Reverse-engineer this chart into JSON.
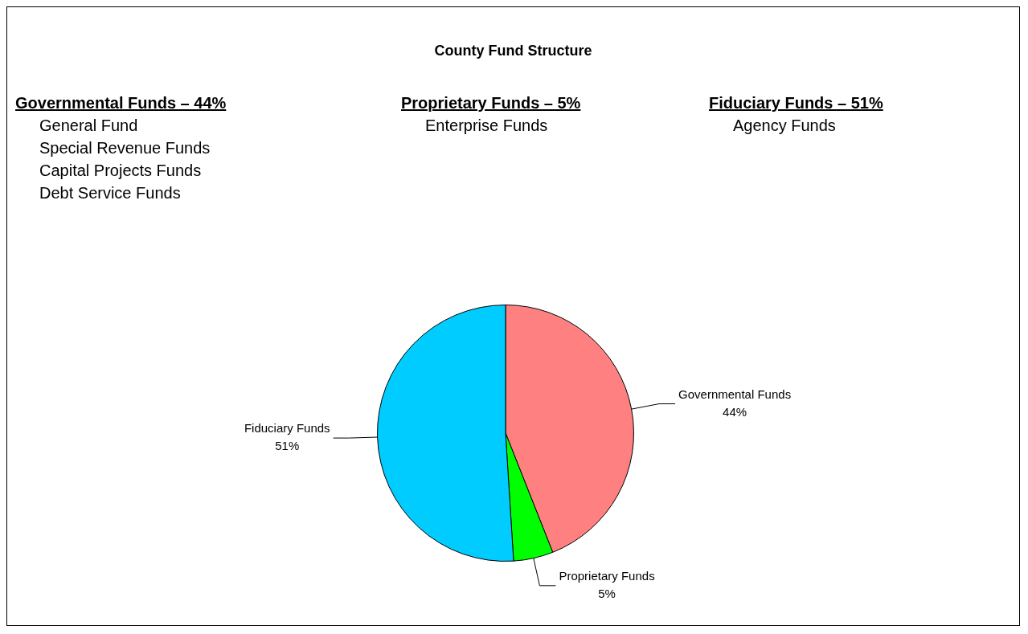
{
  "chart_data": {
    "type": "pie",
    "title": "County Fund Structure",
    "categories": [
      "Governmental Funds",
      "Proprietary Funds",
      "Fiduciary Funds"
    ],
    "values": [
      44,
      5,
      51
    ],
    "colors": [
      "#ff8080",
      "#00ff00",
      "#00ccff"
    ],
    "value_labels": [
      "44%",
      "5%",
      "51%"
    ],
    "legend": false,
    "annotations": [
      "Governmental Funds – 44%\nGeneral Fund\nSpecial Revenue Funds\nCapital Projects Funds\nDebt Service Funds",
      "Proprietary Funds – 5%\nEnterprise Funds",
      "Fiduciary Funds – 51%\nAgency Funds"
    ]
  }
}
